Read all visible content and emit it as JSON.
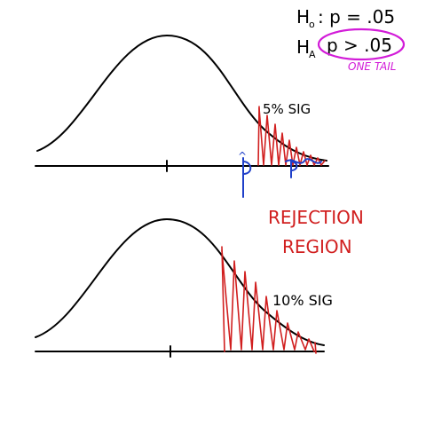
{
  "hypotheses": {
    "null_label": "H",
    "null_sub": "o",
    "null_rest": ": p = .05",
    "alt_label": "H",
    "alt_sub": "A",
    "alt_rest": "p > .05",
    "tail_note": "ONE TAIL"
  },
  "top_curve": {
    "sig_label": "5% SIG",
    "estimate_label": "p̂",
    "estimate_hat": "^"
  },
  "middle_text": {
    "line1": "REJECTION",
    "line2": "REGION"
  },
  "bottom_curve": {
    "sig_label": "10% SIG"
  },
  "colors": {
    "ink": "#000000",
    "rejection": "#d11f1f",
    "estimate": "#1f3fc9",
    "highlight": "#d21bd8"
  }
}
